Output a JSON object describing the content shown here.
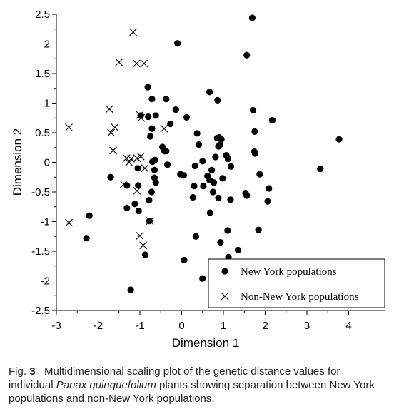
{
  "chart_data": {
    "type": "scatter",
    "xlabel": "Dimension 1",
    "ylabel": "Dimension 2",
    "xlim": [
      -3,
      5
    ],
    "ylim": [
      -2.5,
      2.5
    ],
    "x_ticks": [
      "-3",
      "-2",
      "-1",
      "0",
      "1",
      "2",
      "3",
      "4"
    ],
    "y_ticks": [
      "2.5",
      "2",
      "1.5",
      "1",
      "0.5",
      "0",
      "-0.5",
      "-1",
      "-1.5",
      "-2",
      "-2.5"
    ],
    "grid": false,
    "legend_position": "bottom-right",
    "series": [
      {
        "name": "New York populations",
        "marker": "filled-circle",
        "color": "#000000",
        "points": [
          [
            1.69,
            2.44
          ],
          [
            -0.1,
            2.01
          ],
          [
            1.56,
            1.81
          ],
          [
            -0.81,
            1.27
          ],
          [
            -0.71,
            1.07
          ],
          [
            -0.37,
            1.07
          ],
          [
            0.67,
            1.19
          ],
          [
            0.86,
            1.05
          ],
          [
            -0.98,
            0.79
          ],
          [
            -0.8,
            0.77
          ],
          [
            -0.62,
            0.79
          ],
          [
            0.12,
            0.76
          ],
          [
            1.71,
            0.88
          ],
          [
            2.17,
            0.71
          ],
          [
            -0.14,
            0.89
          ],
          [
            -0.71,
            0.57
          ],
          [
            -0.27,
            0.65
          ],
          [
            -0.75,
            0.44
          ],
          [
            0.37,
            0.49
          ],
          [
            0.85,
            0.41
          ],
          [
            0.9,
            0.42
          ],
          [
            0.95,
            0.39
          ],
          [
            0.41,
            0.3
          ],
          [
            0.88,
            0.27
          ],
          [
            0.92,
            0.3
          ],
          [
            1.75,
            0.52
          ],
          [
            3.77,
            0.39
          ],
          [
            -0.46,
            0.26
          ],
          [
            -0.41,
            0.19
          ],
          [
            -0.37,
            0.19
          ],
          [
            1.07,
            0.12
          ],
          [
            0.81,
            0.09
          ],
          [
            0.5,
            0.02
          ],
          [
            1.11,
            0.06
          ],
          [
            1.74,
            0.18
          ],
          [
            1.76,
            0.15
          ],
          [
            -0.7,
            0.01
          ],
          [
            -0.64,
            0.04
          ],
          [
            -0.34,
            -0.04
          ],
          [
            0.32,
            -0.06
          ],
          [
            1.18,
            -0.07
          ],
          [
            -0.65,
            -0.13
          ],
          [
            0.72,
            -0.13
          ],
          [
            3.32,
            -0.11
          ],
          [
            -0.03,
            -0.2
          ],
          [
            0.05,
            -0.22
          ],
          [
            0.62,
            -0.23
          ],
          [
            1.87,
            -0.2
          ],
          [
            -1.7,
            -0.25
          ],
          [
            -1.05,
            -0.1
          ],
          [
            -0.65,
            -0.26
          ],
          [
            0.98,
            -0.27
          ],
          [
            -0.62,
            -0.34
          ],
          [
            0.3,
            -0.4
          ],
          [
            0.52,
            -0.4
          ],
          [
            0.67,
            -0.3
          ],
          [
            0.77,
            -0.34
          ],
          [
            2.09,
            -0.44
          ],
          [
            -1.04,
            -0.39
          ],
          [
            -1.31,
            -0.39
          ],
          [
            -0.72,
            -0.5
          ],
          [
            0.27,
            -0.59
          ],
          [
            0.88,
            -0.6
          ],
          [
            0.75,
            -0.5
          ],
          [
            1.53,
            -0.52
          ],
          [
            1.56,
            -0.56
          ],
          [
            1.17,
            -0.63
          ],
          [
            2.06,
            -0.66
          ],
          [
            -0.78,
            -0.64
          ],
          [
            -1.12,
            -0.7
          ],
          [
            -1.31,
            -0.77
          ],
          [
            -1.03,
            -0.82
          ],
          [
            0.68,
            -0.85
          ],
          [
            -2.21,
            -0.9
          ],
          [
            -0.77,
            -0.99
          ],
          [
            1.1,
            -1.15
          ],
          [
            1.84,
            -1.14
          ],
          [
            -2.28,
            -1.28
          ],
          [
            0.34,
            -1.25
          ],
          [
            0.93,
            -1.35
          ],
          [
            1.35,
            -1.48
          ],
          [
            -0.87,
            -1.56
          ],
          [
            1.12,
            -1.6
          ],
          [
            0.06,
            -1.65
          ],
          [
            0.5,
            -1.96
          ],
          [
            -1.22,
            -2.15
          ]
        ]
      },
      {
        "name": "Non-New York populations",
        "marker": "x",
        "color": "#000000",
        "points": [
          [
            -1.16,
            2.2
          ],
          [
            -1.5,
            1.69
          ],
          [
            -1.08,
            1.67
          ],
          [
            -0.9,
            1.67
          ],
          [
            -1.73,
            0.9
          ],
          [
            -1.0,
            0.8
          ],
          [
            -0.97,
            0.75
          ],
          [
            -1.6,
            0.59
          ],
          [
            -1.69,
            0.5
          ],
          [
            -2.7,
            0.59
          ],
          [
            -0.42,
            0.57
          ],
          [
            -1.64,
            0.2
          ],
          [
            -1.32,
            0.07
          ],
          [
            -1.21,
            0.06
          ],
          [
            -1.07,
            0.07
          ],
          [
            -0.98,
            0.1
          ],
          [
            -1.26,
            0.0
          ],
          [
            -0.88,
            -0.1
          ],
          [
            -1.39,
            -0.37
          ],
          [
            -1.07,
            -0.48
          ],
          [
            -2.7,
            -1.02
          ],
          [
            -0.76,
            -0.99
          ],
          [
            -1.0,
            -1.24
          ],
          [
            -0.92,
            -1.4
          ]
        ]
      }
    ]
  },
  "legend": {
    "items": [
      {
        "label": "New York populations"
      },
      {
        "label": "Non-New York populations"
      }
    ]
  },
  "caption": {
    "label": "Fig.",
    "number": "3",
    "text_before": "Multidimensional scaling plot of the genetic distance values for individual ",
    "species": "Panax quinquefolium",
    "text_after": " plants showing separation between New York populations and non-New York populations."
  }
}
